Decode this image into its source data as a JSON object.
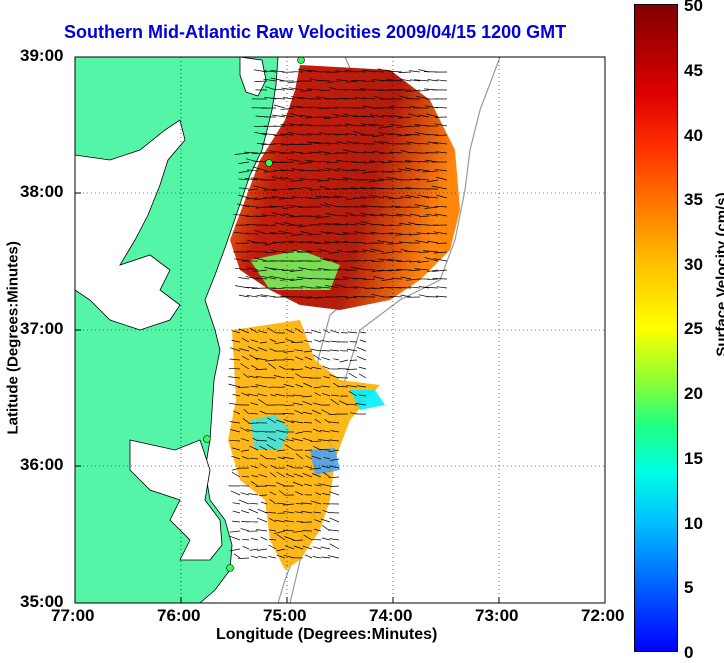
{
  "title": "Southern Mid-Atlantic Raw Velocities 2009/04/15 1200 GMT",
  "x_axis": {
    "label": "Longitude (Degrees:Minutes)",
    "ticks": [
      "77:00",
      "76:00",
      "75:00",
      "74:00",
      "73:00",
      "72:00"
    ]
  },
  "y_axis": {
    "label": "Latitude (Degrees:Minutes)",
    "ticks": [
      "39:00",
      "38:00",
      "37:00",
      "36:00",
      "35:00"
    ]
  },
  "colorbar": {
    "label": "Surface Velocity (cm/s)",
    "ticks": [
      "50",
      "45",
      "40",
      "35",
      "30",
      "25",
      "20",
      "15",
      "10",
      "5",
      "0"
    ],
    "min": 0,
    "max": 50
  },
  "colors": {
    "land": "#55f5a8",
    "title": "#0000dd",
    "water": "#ffffff"
  }
}
